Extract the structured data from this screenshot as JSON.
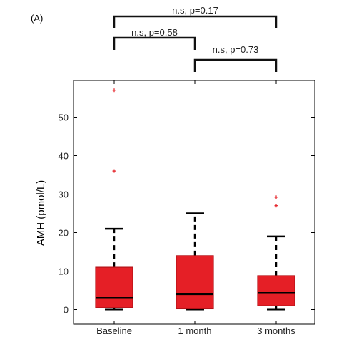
{
  "chart_data": {
    "type": "boxplot",
    "panel_label": "(A)",
    "ylabel": "AMH  (pmol/L)",
    "ylim": [
      -5,
      60
    ],
    "yticks": [
      0,
      10,
      20,
      30,
      40,
      50
    ],
    "categories": [
      "Baseline",
      "1 month",
      "3 months"
    ],
    "boxes": [
      {
        "whisker_low": 0,
        "q1": 0.5,
        "median": 3.0,
        "q3": 11.0,
        "whisker_high": 21.0,
        "outliers": [
          36,
          57
        ]
      },
      {
        "whisker_low": 0,
        "q1": 0.2,
        "median": 4.0,
        "q3": 14.0,
        "whisker_high": 25.0,
        "outliers": []
      },
      {
        "whisker_low": 0,
        "q1": 1.0,
        "median": 4.3,
        "q3": 8.8,
        "whisker_high": 19.0,
        "outliers": [
          27,
          29.2
        ]
      }
    ],
    "comparisons": [
      {
        "from": 0,
        "to": 2,
        "label": "n.s, p=0.17"
      },
      {
        "from": 0,
        "to": 1,
        "label": "n.s, p=0.58"
      },
      {
        "from": 1,
        "to": 2,
        "label": "n.s, p=0.73"
      }
    ],
    "colors": {
      "box_fill": "#e51f26",
      "box_edge": "#b31217",
      "outlier": "#e51f26",
      "median": "#000000",
      "axis": "#000000"
    }
  }
}
